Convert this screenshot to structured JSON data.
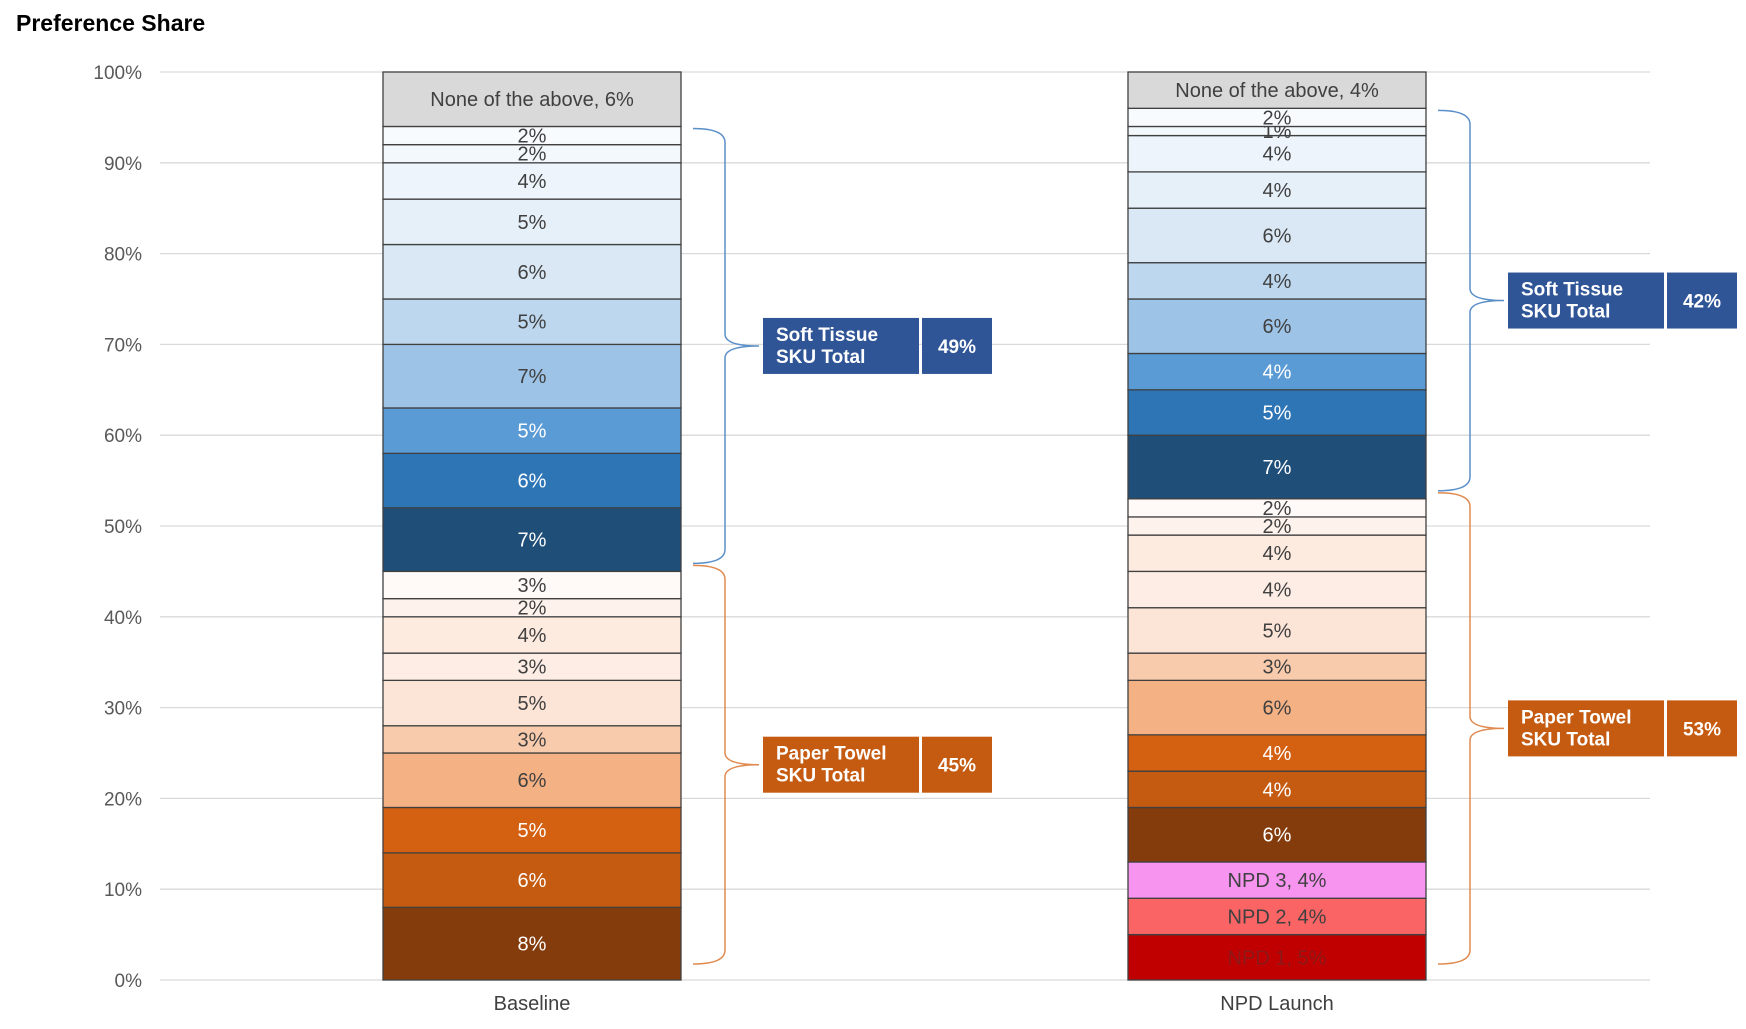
{
  "chart_data": {
    "type": "stacked-bar",
    "title": "Preference Share",
    "ylim": [
      0,
      100
    ],
    "yticks": [
      "0%",
      "10%",
      "20%",
      "30%",
      "40%",
      "50%",
      "60%",
      "70%",
      "80%",
      "90%",
      "100%"
    ],
    "grid": true,
    "categories": [
      "Baseline",
      "NPD Launch"
    ],
    "bars": [
      {
        "category": "Baseline",
        "segments": [
          {
            "value": 8,
            "label": "8%",
            "color": "#843C0C",
            "text_color": "#ffffff"
          },
          {
            "value": 6,
            "label": "6%",
            "color": "#C55A11",
            "text_color": "#ffffff"
          },
          {
            "value": 5,
            "label": "5%",
            "color": "#D46012",
            "text_color": "#ffffff"
          },
          {
            "value": 6,
            "label": "6%",
            "color": "#F4B183",
            "text_color": "#404040"
          },
          {
            "value": 3,
            "label": "3%",
            "color": "#F8CBAD",
            "text_color": "#404040"
          },
          {
            "value": 5,
            "label": "5%",
            "color": "#FCE4D6",
            "text_color": "#404040"
          },
          {
            "value": 3,
            "label": "3%",
            "color": "#FDEDE4",
            "text_color": "#404040"
          },
          {
            "value": 4,
            "label": "4%",
            "color": "#FDEBE0",
            "text_color": "#404040"
          },
          {
            "value": 2,
            "label": "2%",
            "color": "#FEF2EC",
            "text_color": "#404040"
          },
          {
            "value": 3,
            "label": "3%",
            "color": "#FFFAF7",
            "text_color": "#404040"
          },
          {
            "value": 7,
            "label": "7%",
            "color": "#1F4E79",
            "text_color": "#ffffff"
          },
          {
            "value": 6,
            "label": "6%",
            "color": "#2E75B6",
            "text_color": "#ffffff"
          },
          {
            "value": 5,
            "label": "5%",
            "color": "#5B9BD5",
            "text_color": "#ffffff"
          },
          {
            "value": 7,
            "label": "7%",
            "color": "#9DC3E6",
            "text_color": "#404040"
          },
          {
            "value": 5,
            "label": "5%",
            "color": "#BDD7EE",
            "text_color": "#404040"
          },
          {
            "value": 6,
            "label": "6%",
            "color": "#DAE8F5",
            "text_color": "#404040"
          },
          {
            "value": 5,
            "label": "5%",
            "color": "#E6F0F9",
            "text_color": "#404040"
          },
          {
            "value": 4,
            "label": "4%",
            "color": "#EDF4FB",
            "text_color": "#404040"
          },
          {
            "value": 2,
            "label": "2%",
            "color": "#F3F8FC",
            "text_color": "#404040"
          },
          {
            "value": 2,
            "label": "2%",
            "color": "#F8FBFE",
            "text_color": "#404040"
          },
          {
            "value": 6,
            "label": "None of the above, 6%",
            "color": "#D9D9D9",
            "text_color": "#404040"
          }
        ]
      },
      {
        "category": "NPD Launch",
        "segments": [
          {
            "value": 5,
            "label": "NPD 1, 5%",
            "color": "#C00000",
            "text_color": "#8B1A1A"
          },
          {
            "value": 4,
            "label": "NPD 2, 4%",
            "color": "#FA6464",
            "text_color": "#404040"
          },
          {
            "value": 4,
            "label": "NPD 3, 4%",
            "color": "#F794F0",
            "text_color": "#404040"
          },
          {
            "value": 6,
            "label": "6%",
            "color": "#843C0C",
            "text_color": "#ffffff"
          },
          {
            "value": 4,
            "label": "4%",
            "color": "#C55A11",
            "text_color": "#ffffff"
          },
          {
            "value": 4,
            "label": "4%",
            "color": "#D46012",
            "text_color": "#ffffff"
          },
          {
            "value": 6,
            "label": "6%",
            "color": "#F4B183",
            "text_color": "#404040"
          },
          {
            "value": 3,
            "label": "3%",
            "color": "#F8CBAD",
            "text_color": "#404040"
          },
          {
            "value": 5,
            "label": "5%",
            "color": "#FCE4D6",
            "text_color": "#404040"
          },
          {
            "value": 4,
            "label": "4%",
            "color": "#FDEDE4",
            "text_color": "#404040"
          },
          {
            "value": 4,
            "label": "4%",
            "color": "#FDEBE0",
            "text_color": "#404040"
          },
          {
            "value": 2,
            "label": "2%",
            "color": "#FEF2EC",
            "text_color": "#404040"
          },
          {
            "value": 2,
            "label": "2%",
            "color": "#FFFAF7",
            "text_color": "#404040"
          },
          {
            "value": 7,
            "label": "7%",
            "color": "#1F4E79",
            "text_color": "#ffffff"
          },
          {
            "value": 5,
            "label": "5%",
            "color": "#2E75B6",
            "text_color": "#ffffff"
          },
          {
            "value": 4,
            "label": "4%",
            "color": "#5B9BD5",
            "text_color": "#ffffff"
          },
          {
            "value": 6,
            "label": "6%",
            "color": "#9DC3E6",
            "text_color": "#404040"
          },
          {
            "value": 4,
            "label": "4%",
            "color": "#BDD7EE",
            "text_color": "#404040"
          },
          {
            "value": 6,
            "label": "6%",
            "color": "#DAE8F5",
            "text_color": "#404040"
          },
          {
            "value": 4,
            "label": "4%",
            "color": "#E6F0F9",
            "text_color": "#404040"
          },
          {
            "value": 4,
            "label": "4%",
            "color": "#EDF4FB",
            "text_color": "#404040"
          },
          {
            "value": 1,
            "label": "1%",
            "color": "#F3F8FC",
            "text_color": "#404040"
          },
          {
            "value": 2,
            "label": "2%",
            "color": "#F8FBFE",
            "text_color": "#404040"
          },
          {
            "value": 4,
            "label": "None of the above, 4%",
            "color": "#D9D9D9",
            "text_color": "#404040"
          }
        ]
      }
    ],
    "group_totals": [
      {
        "bar": 0,
        "name": "Soft Tissue\nSKU Total",
        "value_label": "49%",
        "range": [
          45,
          94
        ],
        "color": "#2F5597",
        "bracket_color": "#5B8FC9"
      },
      {
        "bar": 0,
        "name": "Paper Towel\nSKU Total",
        "value_label": "45%",
        "range": [
          0,
          45
        ],
        "color": "#C55A11",
        "bracket_color": "#E08A50"
      },
      {
        "bar": 1,
        "name": "Soft Tissue\nSKU Total",
        "value_label": "42%",
        "range": [
          53,
          96
        ],
        "color": "#2F5597",
        "bracket_color": "#5B8FC9"
      },
      {
        "bar": 1,
        "name": "Paper Towel\nSKU Total",
        "value_label": "53%",
        "range": [
          0,
          53
        ],
        "color": "#C55A11",
        "bracket_color": "#E08A50"
      }
    ]
  }
}
